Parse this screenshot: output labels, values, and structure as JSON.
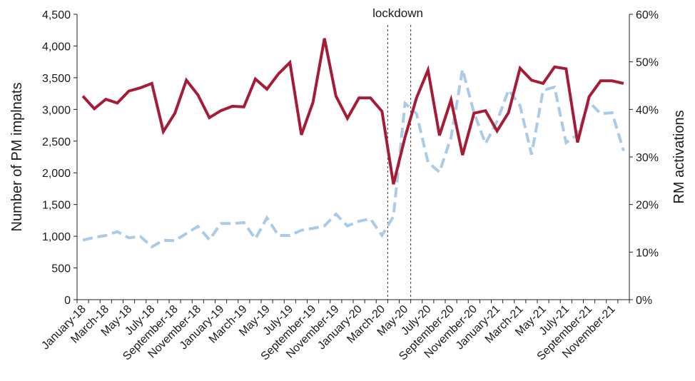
{
  "chart_data": {
    "type": "line",
    "x": [
      "January-18",
      "February-18",
      "March-18",
      "April-18",
      "May-18",
      "June-18",
      "July-18",
      "August-18",
      "September-18",
      "October-18",
      "November-18",
      "December-18",
      "January-19",
      "February-19",
      "March-19",
      "April-19",
      "May-19",
      "June-19",
      "July-19",
      "August-19",
      "September-19",
      "October-19",
      "November-19",
      "December-19",
      "January-20",
      "February-20",
      "March-20",
      "April-20",
      "May-20",
      "June-20",
      "July-20",
      "August-20",
      "September-20",
      "October-20",
      "November-20",
      "December-20",
      "January-21",
      "February-21",
      "March-21",
      "April-21",
      "May-21",
      "June-21",
      "July-21",
      "August-21",
      "September-21",
      "October-21",
      "November-21",
      "December-21"
    ],
    "x_tick_labels": [
      "January-18",
      "March-18",
      "May-18",
      "July-18",
      "September-18",
      "November-18",
      "January-19",
      "March-19",
      "May-19",
      "July-19",
      "September-19",
      "November-19",
      "January-20",
      "March-20",
      "May-20",
      "July-20",
      "September-20",
      "November-20",
      "January-21",
      "March-21",
      "May-21",
      "July-21",
      "September-21",
      "November-21"
    ],
    "series": [
      {
        "axis": "left",
        "color": "#a51c36",
        "style": "solid",
        "values": [
          3210,
          3010,
          3160,
          3100,
          3290,
          3340,
          3410,
          2650,
          2940,
          3460,
          3230,
          2870,
          2980,
          3050,
          3040,
          3480,
          3320,
          3560,
          3740,
          2600,
          3110,
          4120,
          3210,
          2860,
          3180,
          3180,
          2970,
          1820,
          2560,
          3180,
          3620,
          2590,
          3150,
          2280,
          2940,
          2980,
          2660,
          2950,
          3650,
          3460,
          3410,
          3670,
          3640,
          2480,
          3200,
          3450,
          3450,
          3410
        ]
      },
      {
        "axis": "right",
        "color": "#a9cbe9",
        "style": "dashed",
        "values": [
          12.5,
          13.1,
          13.5,
          14.3,
          13.0,
          13.3,
          11.1,
          12.5,
          12.4,
          13.9,
          15.4,
          12.6,
          16.0,
          16.0,
          16.2,
          12.8,
          17.2,
          13.5,
          13.5,
          14.6,
          15.0,
          15.5,
          18.0,
          15.5,
          16.5,
          17.0,
          13.5,
          17.5,
          41.3,
          39.1,
          28.9,
          26.8,
          34.1,
          48.4,
          39.3,
          32.8,
          37.5,
          44.1,
          40.8,
          30.5,
          44.0,
          44.7,
          33.0,
          34.7,
          41.6,
          39.1,
          39.3,
          31.3
        ]
      }
    ],
    "y_left": {
      "label": "Number of PM implnats",
      "ylim": [
        0,
        4500
      ],
      "ticks": [
        "0",
        "500",
        "1,000",
        "1,500",
        "2,000",
        "2,500",
        "3,000",
        "3,500",
        "4,000",
        "4,500"
      ]
    },
    "y_right": {
      "label": "RM activations",
      "ylim": [
        0,
        60
      ],
      "ticks": [
        "0%",
        "10%",
        "20%",
        "30%",
        "40%",
        "50%",
        "60%"
      ]
    },
    "annotations": [
      {
        "text": "lockdown",
        "between_x": [
          "March-20",
          "May-20"
        ]
      }
    ],
    "grid": false,
    "legend": false
  }
}
